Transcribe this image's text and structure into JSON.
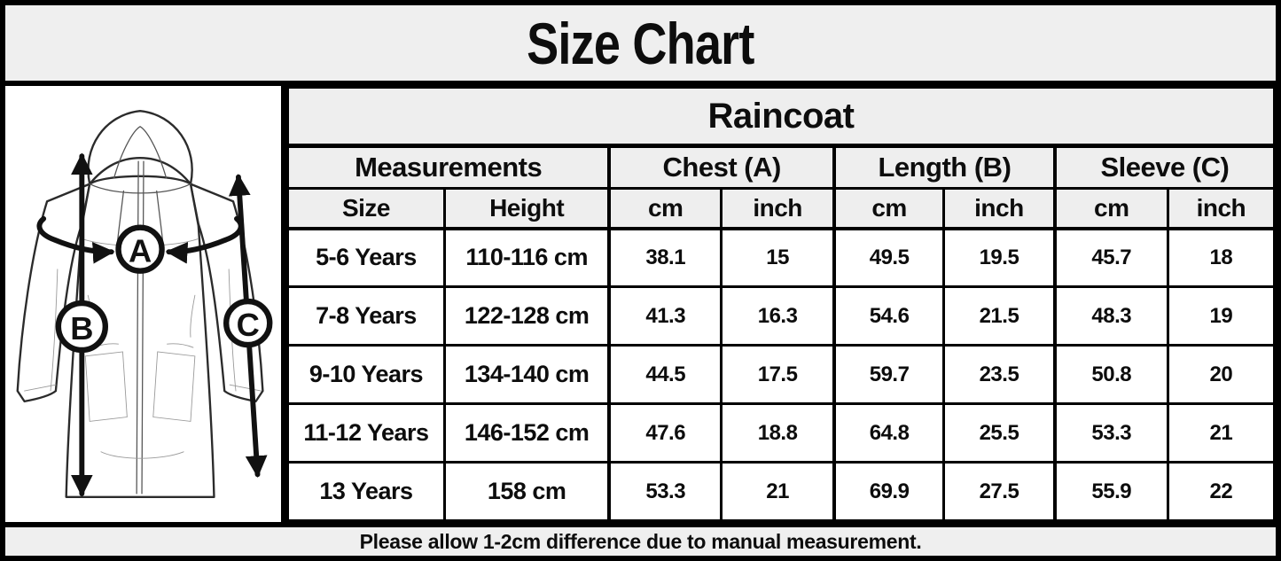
{
  "title": "Size Chart",
  "product": "Raincoat",
  "diagram": {
    "description": "raincoat-sketch-with-measure-arrows",
    "labels": {
      "chest": "A",
      "length": "B",
      "sleeve": "C"
    }
  },
  "table": {
    "group_headers": [
      {
        "label": "Measurements"
      },
      {
        "label": "Chest (A)"
      },
      {
        "label": "Length (B)"
      },
      {
        "label": "Sleeve (C)"
      }
    ],
    "sub_headers": [
      "Size",
      "Height",
      "cm",
      "inch",
      "cm",
      "inch",
      "cm",
      "inch"
    ],
    "rows": [
      [
        "5-6 Years",
        "110-116 cm",
        "38.1",
        "15",
        "49.5",
        "19.5",
        "45.7",
        "18"
      ],
      [
        "7-8 Years",
        "122-128 cm",
        "41.3",
        "16.3",
        "54.6",
        "21.5",
        "48.3",
        "19"
      ],
      [
        "9-10 Years",
        "134-140 cm",
        "44.5",
        "17.5",
        "59.7",
        "23.5",
        "50.8",
        "20"
      ],
      [
        "11-12 Years",
        "146-152 cm",
        "47.6",
        "18.8",
        "64.8",
        "25.5",
        "53.3",
        "21"
      ],
      [
        "13 Years",
        "158 cm",
        "53.3",
        "21",
        "69.9",
        "27.5",
        "55.9",
        "22"
      ]
    ]
  },
  "footer": "Please allow 1-2cm difference due to manual measurement.",
  "colors": {
    "band_background": "#efefef",
    "header_cell_background": "#eeeeee",
    "cell_background": "#ffffff",
    "border": "#000000",
    "text": "#0d0d0d"
  }
}
